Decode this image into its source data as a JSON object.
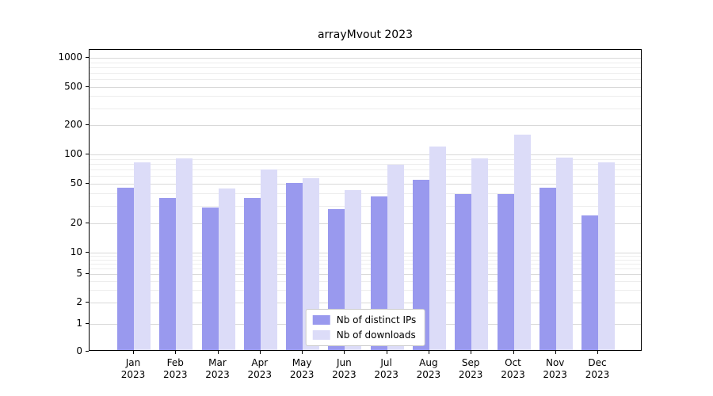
{
  "page": {
    "background": "#ffffff"
  },
  "chart_data": {
    "type": "bar",
    "title": "arrayMvout 2023",
    "yscale": "log",
    "categories": [
      "Jan",
      "Feb",
      "Mar",
      "Apr",
      "May",
      "Jun",
      "Jul",
      "Aug",
      "Sep",
      "Oct",
      "Nov",
      "Dec"
    ],
    "category_year": "2023",
    "series": [
      {
        "name": "Nb of distinct IPs",
        "color": "#9999ee",
        "values": [
          44,
          35,
          28,
          35,
          49,
          27,
          36,
          53,
          38,
          38,
          44,
          23
        ]
      },
      {
        "name": "Nb of downloads",
        "color": "#dcdcf8",
        "values": [
          80,
          88,
          43,
          68,
          55,
          42,
          75,
          115,
          88,
          155,
          90,
          80
        ]
      }
    ],
    "y_ticks": [
      0,
      1,
      2,
      5,
      10,
      20,
      50,
      100,
      200,
      500,
      1000
    ],
    "y_minor_ticks": [
      3,
      4,
      6,
      7,
      8,
      9,
      30,
      40,
      60,
      70,
      80,
      90,
      300,
      400,
      600,
      700,
      800,
      900
    ],
    "ylim": [
      0,
      1200
    ],
    "grid": true,
    "legend_position": "lower center"
  },
  "colors": {
    "grid_major": "#d9d9d9",
    "grid_minor": "#ededed",
    "axis": "#000000",
    "background": "#ffffff"
  }
}
